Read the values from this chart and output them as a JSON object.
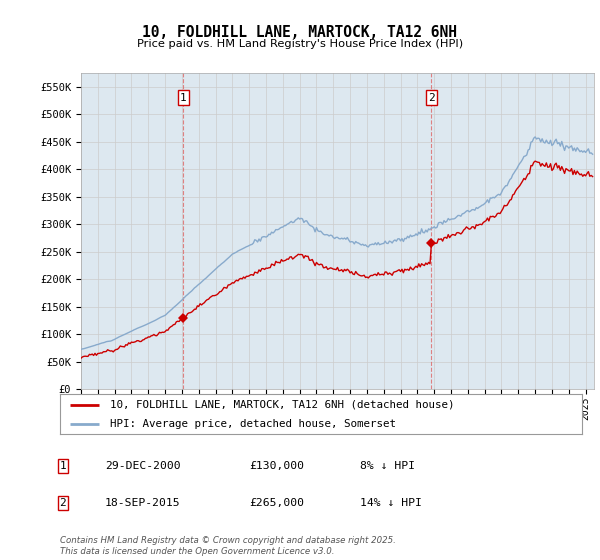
{
  "title": "10, FOLDHILL LANE, MARTOCK, TA12 6NH",
  "subtitle": "Price paid vs. HM Land Registry's House Price Index (HPI)",
  "ylabel_ticks": [
    "£0",
    "£50K",
    "£100K",
    "£150K",
    "£200K",
    "£250K",
    "£300K",
    "£350K",
    "£400K",
    "£450K",
    "£500K",
    "£550K"
  ],
  "ytick_values": [
    0,
    50000,
    100000,
    150000,
    200000,
    250000,
    300000,
    350000,
    400000,
    450000,
    500000,
    550000
  ],
  "ylim": [
    0,
    575000
  ],
  "xlim_start": 1995.0,
  "xlim_end": 2025.5,
  "sale1_x": 2001.0,
  "sale1_y": 130000,
  "sale2_x": 2015.75,
  "sale2_y": 265000,
  "legend_line1": "10, FOLDHILL LANE, MARTOCK, TA12 6NH (detached house)",
  "legend_line2": "HPI: Average price, detached house, Somerset",
  "footer": "Contains HM Land Registry data © Crown copyright and database right 2025.\nThis data is licensed under the Open Government Licence v3.0.",
  "line_color_property": "#cc0000",
  "line_color_hpi": "#88aacc",
  "vline_color": "#dd6666",
  "grid_color": "#cccccc",
  "background_color": "#ffffff",
  "plot_bg_color": "#dde8f0"
}
